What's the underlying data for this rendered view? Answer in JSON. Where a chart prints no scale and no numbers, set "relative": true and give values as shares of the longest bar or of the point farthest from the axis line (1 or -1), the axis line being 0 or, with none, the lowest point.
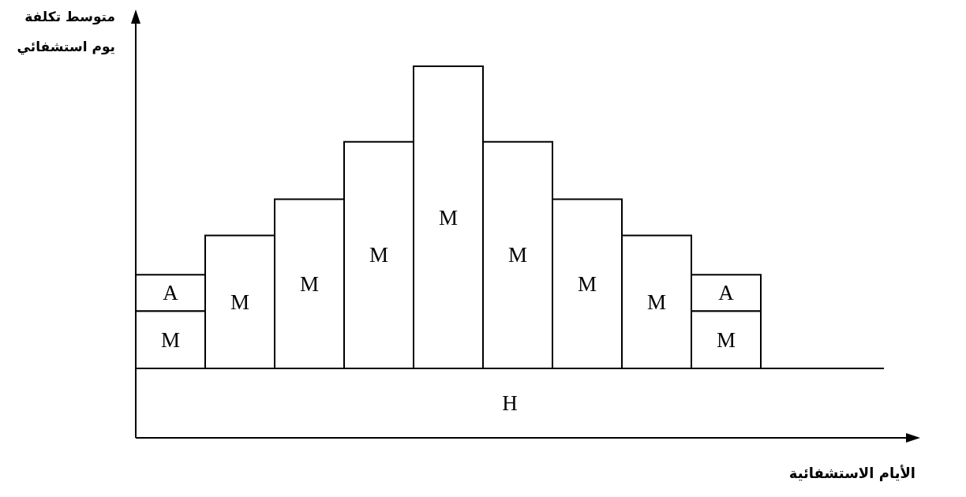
{
  "chart_data": {
    "type": "bar",
    "stacked": true,
    "relative": true,
    "ylabel": "متوسط تكلفة يوم استشفائي",
    "categories": [
      null,
      null,
      null,
      null,
      null,
      null,
      null,
      null,
      null
    ],
    "series": [
      {
        "name": "M",
        "color": "#ffffff",
        "values": [
          0.19,
          0.44,
          0.56,
          0.75,
          1,
          0.75,
          0.56,
          0.44,
          0.19
        ]
      },
      {
        "name": "A",
        "color": "#ffffff",
        "values": [
          0.12,
          null,
          null,
          null,
          null,
          null,
          null,
          null,
          0.12
        ]
      }
    ],
    "annotations": [
      "H",
      "الأيام الاستشفائية"
    ]
  }
}
